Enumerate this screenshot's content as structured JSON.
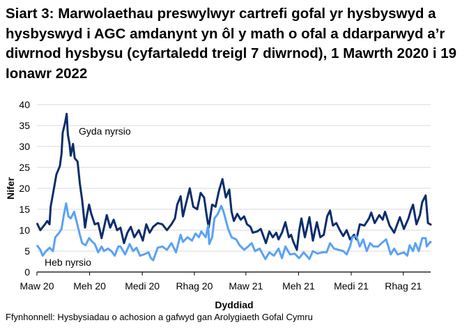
{
  "chart_data": {
    "type": "line",
    "title": "Siart 3: Marwolaethau preswylwyr cartrefi gofal yr hysbyswyd a hysbyswyd i AGC amdanynt yn ôl y math o ofal a ddarparwyd a’r diwrnod hysbysu (cyfartaledd treigl 7 diwrnod), 1 Mawrth 2020 i 19 Ionawr 2022",
    "xlabel": "Dyddiad",
    "ylabel": "Nifer",
    "xlim": [
      "2020-03-01",
      "2022-01-19"
    ],
    "ylim": [
      0,
      40
    ],
    "yticks": [
      0,
      5,
      10,
      15,
      20,
      25,
      30,
      35,
      40
    ],
    "xticks": [
      {
        "date": "2020-03-01",
        "label": "Maw 20"
      },
      {
        "date": "2020-06-01",
        "label": "Meh 20"
      },
      {
        "date": "2020-09-01",
        "label": "Medi 20"
      },
      {
        "date": "2020-12-01",
        "label": "Rhag 20"
      },
      {
        "date": "2021-03-01",
        "label": "Maw 21"
      },
      {
        "date": "2021-06-01",
        "label": "Meh 21"
      },
      {
        "date": "2021-09-01",
        "label": "Medi 21"
      },
      {
        "date": "2021-12-01",
        "label": "Rhag 21"
      }
    ],
    "grid": "horizontal",
    "source": "Ffynhonnell: Hysbysiadau o achosion a gafwyd gan Arolygiaeth Gofal Cymru",
    "series": [
      {
        "name": "Gyda nyrsio",
        "color": "#0b2d6b",
        "points": [
          [
            "2020-03-01",
            11.7
          ],
          [
            "2020-03-07",
            10
          ],
          [
            "2020-03-15",
            11.4
          ],
          [
            "2020-03-19",
            12.2
          ],
          [
            "2020-03-23",
            11.4
          ],
          [
            "2020-03-25",
            15.6
          ],
          [
            "2020-03-30",
            19.4
          ],
          [
            "2020-04-04",
            23.3
          ],
          [
            "2020-04-10",
            25.3
          ],
          [
            "2020-04-13",
            28.3
          ],
          [
            "2020-04-15",
            33.3
          ],
          [
            "2020-04-19",
            35.6
          ],
          [
            "2020-04-22",
            37.8
          ],
          [
            "2020-04-24",
            32.8
          ],
          [
            "2020-04-27",
            30.6
          ],
          [
            "2020-04-29",
            27.8
          ],
          [
            "2020-05-03",
            30.6
          ],
          [
            "2020-05-06",
            27.2
          ],
          [
            "2020-05-11",
            26.4
          ],
          [
            "2020-05-15",
            21.1
          ],
          [
            "2020-05-19",
            17.2
          ],
          [
            "2020-05-24",
            10.6
          ],
          [
            "2020-05-27",
            13.3
          ],
          [
            "2020-05-31",
            16.1
          ],
          [
            "2020-06-04",
            13.9
          ],
          [
            "2020-06-10",
            11.4
          ],
          [
            "2020-06-16",
            11.7
          ],
          [
            "2020-06-22",
            8.1
          ],
          [
            "2020-07-01",
            13.6
          ],
          [
            "2020-07-07",
            10.6
          ],
          [
            "2020-07-13",
            12.5
          ],
          [
            "2020-07-19",
            10
          ],
          [
            "2020-07-25",
            10.6
          ],
          [
            "2020-07-31",
            6.9
          ],
          [
            "2020-08-06",
            9.4
          ],
          [
            "2020-08-12",
            10.8
          ],
          [
            "2020-08-18",
            8.3
          ],
          [
            "2020-08-26",
            10
          ],
          [
            "2020-09-02",
            7.5
          ],
          [
            "2020-09-08",
            11.4
          ],
          [
            "2020-09-14",
            9.4
          ],
          [
            "2020-09-20",
            10.8
          ],
          [
            "2020-09-28",
            11.7
          ],
          [
            "2020-10-06",
            11.4
          ],
          [
            "2020-10-14",
            10
          ],
          [
            "2020-10-22",
            11.4
          ],
          [
            "2020-10-28",
            12.8
          ],
          [
            "2020-11-01",
            16.1
          ],
          [
            "2020-11-07",
            18.1
          ],
          [
            "2020-11-11",
            13.3
          ],
          [
            "2020-11-17",
            16.7
          ],
          [
            "2020-11-23",
            20
          ],
          [
            "2020-11-29",
            15.6
          ],
          [
            "2020-12-06",
            15
          ],
          [
            "2020-12-12",
            18.9
          ],
          [
            "2020-12-18",
            17.8
          ],
          [
            "2020-12-22",
            13.9
          ],
          [
            "2020-12-26",
            10.6
          ],
          [
            "2021-01-01",
            16.1
          ],
          [
            "2021-01-07",
            15.6
          ],
          [
            "2021-01-13",
            19.4
          ],
          [
            "2021-01-19",
            22.2
          ],
          [
            "2021-01-25",
            17.8
          ],
          [
            "2021-01-31",
            19.7
          ],
          [
            "2021-02-04",
            14.4
          ],
          [
            "2021-02-08",
            12.2
          ],
          [
            "2021-02-14",
            13.9
          ],
          [
            "2021-02-20",
            12.5
          ],
          [
            "2021-02-26",
            13.3
          ],
          [
            "2021-03-03",
            11.4
          ],
          [
            "2021-03-09",
            10.8
          ],
          [
            "2021-03-13",
            9.4
          ],
          [
            "2021-03-21",
            9.7
          ],
          [
            "2021-03-27",
            10.3
          ],
          [
            "2021-04-05",
            6.9
          ],
          [
            "2021-04-11",
            9.7
          ],
          [
            "2021-04-17",
            8.3
          ],
          [
            "2021-04-23",
            9.4
          ],
          [
            "2021-04-27",
            7.8
          ],
          [
            "2021-05-03",
            9.4
          ],
          [
            "2021-05-09",
            11.9
          ],
          [
            "2021-05-15",
            8.3
          ],
          [
            "2021-05-19",
            8.9
          ],
          [
            "2021-05-23",
            7.2
          ],
          [
            "2021-05-29",
            5.3
          ],
          [
            "2021-06-02",
            9.7
          ],
          [
            "2021-06-06",
            12.8
          ],
          [
            "2021-06-12",
            8.3
          ],
          [
            "2021-06-20",
            13.1
          ],
          [
            "2021-06-26",
            7.5
          ],
          [
            "2021-07-03",
            11.9
          ],
          [
            "2021-07-09",
            8.3
          ],
          [
            "2021-07-15",
            8.9
          ],
          [
            "2021-07-21",
            13.3
          ],
          [
            "2021-07-26",
            14.7
          ],
          [
            "2021-07-31",
            11.1
          ],
          [
            "2021-08-06",
            11.7
          ],
          [
            "2021-08-12",
            10
          ],
          [
            "2021-08-18",
            8.6
          ],
          [
            "2021-08-24",
            10
          ],
          [
            "2021-08-30",
            7.8
          ],
          [
            "2021-09-06",
            8.9
          ],
          [
            "2021-09-10",
            7.8
          ],
          [
            "2021-09-16",
            11.4
          ],
          [
            "2021-09-24",
            11.1
          ],
          [
            "2021-10-02",
            12.8
          ],
          [
            "2021-10-06",
            14.2
          ],
          [
            "2021-10-12",
            11.7
          ],
          [
            "2021-10-20",
            13.6
          ],
          [
            "2021-10-26",
            12.5
          ],
          [
            "2021-10-30",
            14.4
          ],
          [
            "2021-11-07",
            11.1
          ],
          [
            "2021-11-15",
            9.4
          ],
          [
            "2021-11-25",
            13.1
          ],
          [
            "2021-12-02",
            10.3
          ],
          [
            "2021-12-10",
            12.8
          ],
          [
            "2021-12-14",
            14.7
          ],
          [
            "2021-12-18",
            16.1
          ],
          [
            "2021-12-24",
            11.4
          ],
          [
            "2021-12-30",
            13.6
          ],
          [
            "2022-01-03",
            16.7
          ],
          [
            "2022-01-09",
            18.3
          ],
          [
            "2022-01-13",
            11.7
          ],
          [
            "2022-01-17",
            11.4
          ],
          [
            "2022-01-19",
            11.2
          ]
        ]
      },
      {
        "name": "Heb nyrsio",
        "color": "#5aa2f5",
        "points": [
          [
            "2020-03-01",
            6.4
          ],
          [
            "2020-03-07",
            5.3
          ],
          [
            "2020-03-11",
            3.9
          ],
          [
            "2020-03-17",
            5
          ],
          [
            "2020-03-23",
            5.8
          ],
          [
            "2020-03-29",
            5
          ],
          [
            "2020-04-02",
            8.3
          ],
          [
            "2020-04-09",
            9.4
          ],
          [
            "2020-04-13",
            10.3
          ],
          [
            "2020-04-17",
            13.6
          ],
          [
            "2020-04-21",
            16.4
          ],
          [
            "2020-04-25",
            13.3
          ],
          [
            "2020-04-29",
            12.8
          ],
          [
            "2020-05-05",
            14.4
          ],
          [
            "2020-05-09",
            12.2
          ],
          [
            "2020-05-15",
            8.9
          ],
          [
            "2020-05-19",
            6.9
          ],
          [
            "2020-05-25",
            6.4
          ],
          [
            "2020-05-31",
            8.1
          ],
          [
            "2020-06-06",
            7.2
          ],
          [
            "2020-06-10",
            6.7
          ],
          [
            "2020-06-16",
            4.7
          ],
          [
            "2020-06-22",
            6.1
          ],
          [
            "2020-06-26",
            5
          ],
          [
            "2020-07-03",
            5.6
          ],
          [
            "2020-07-09",
            5
          ],
          [
            "2020-07-15",
            3.9
          ],
          [
            "2020-07-21",
            6.1
          ],
          [
            "2020-07-25",
            6.1
          ],
          [
            "2020-08-02",
            4.2
          ],
          [
            "2020-08-10",
            6.7
          ],
          [
            "2020-08-16",
            5
          ],
          [
            "2020-08-22",
            5.8
          ],
          [
            "2020-08-28",
            3.9
          ],
          [
            "2020-09-04",
            4.2
          ],
          [
            "2020-09-12",
            4.7
          ],
          [
            "2020-09-16",
            3.3
          ],
          [
            "2020-09-20",
            2.8
          ],
          [
            "2020-09-28",
            5.8
          ],
          [
            "2020-10-06",
            6.1
          ],
          [
            "2020-10-14",
            5.3
          ],
          [
            "2020-10-22",
            6.9
          ],
          [
            "2020-10-30",
            4.7
          ],
          [
            "2020-11-07",
            8.9
          ],
          [
            "2020-11-11",
            7.2
          ],
          [
            "2020-11-19",
            8.3
          ],
          [
            "2020-11-27",
            7.5
          ],
          [
            "2020-12-03",
            9.2
          ],
          [
            "2020-12-09",
            8.3
          ],
          [
            "2020-12-13",
            9.7
          ],
          [
            "2020-12-21",
            8.3
          ],
          [
            "2020-12-25",
            11.1
          ],
          [
            "2020-12-27",
            6.7
          ],
          [
            "2021-01-01",
            8.3
          ],
          [
            "2021-01-05",
            12.8
          ],
          [
            "2021-01-11",
            13.9
          ],
          [
            "2021-01-17",
            15.8
          ],
          [
            "2021-01-21",
            14.4
          ],
          [
            "2021-01-29",
            10.3
          ],
          [
            "2021-02-04",
            8.3
          ],
          [
            "2021-02-12",
            7.8
          ],
          [
            "2021-02-18",
            6.4
          ],
          [
            "2021-02-26",
            5.3
          ],
          [
            "2021-03-05",
            6.1
          ],
          [
            "2021-03-11",
            6.9
          ],
          [
            "2021-03-17",
            5
          ],
          [
            "2021-03-25",
            5.6
          ],
          [
            "2021-04-04",
            3.1
          ],
          [
            "2021-04-11",
            4.7
          ],
          [
            "2021-04-19",
            3.9
          ],
          [
            "2021-04-27",
            5.6
          ],
          [
            "2021-05-03",
            3.3
          ],
          [
            "2021-05-09",
            6.1
          ],
          [
            "2021-05-17",
            4.2
          ],
          [
            "2021-05-25",
            4.4
          ],
          [
            "2021-06-02",
            3.3
          ],
          [
            "2021-06-10",
            4.7
          ],
          [
            "2021-06-20",
            3.1
          ],
          [
            "2021-06-26",
            5
          ],
          [
            "2021-07-04",
            4.4
          ],
          [
            "2021-07-12",
            4.7
          ],
          [
            "2021-07-20",
            4.7
          ],
          [
            "2021-07-26",
            6.9
          ],
          [
            "2021-08-02",
            5.6
          ],
          [
            "2021-08-10",
            5.3
          ],
          [
            "2021-08-18",
            5
          ],
          [
            "2021-08-24",
            4.2
          ],
          [
            "2021-08-30",
            6.1
          ],
          [
            "2021-09-03",
            8.3
          ],
          [
            "2021-09-10",
            8.6
          ],
          [
            "2021-09-16",
            6.1
          ],
          [
            "2021-09-22",
            7.8
          ],
          [
            "2021-09-28",
            5
          ],
          [
            "2021-10-04",
            6.9
          ],
          [
            "2021-10-10",
            6.1
          ],
          [
            "2021-10-18",
            6.1
          ],
          [
            "2021-10-24",
            6.9
          ],
          [
            "2021-11-01",
            7.8
          ],
          [
            "2021-11-09",
            4.2
          ],
          [
            "2021-11-15",
            5.6
          ],
          [
            "2021-11-21",
            4.2
          ],
          [
            "2021-12-02",
            4.7
          ],
          [
            "2021-12-08",
            3.9
          ],
          [
            "2021-12-12",
            6.4
          ],
          [
            "2021-12-18",
            5
          ],
          [
            "2021-12-22",
            6.9
          ],
          [
            "2021-12-28",
            5
          ],
          [
            "2022-01-03",
            8.1
          ],
          [
            "2022-01-09",
            8.1
          ],
          [
            "2022-01-11",
            6.1
          ],
          [
            "2022-01-17",
            7.2
          ],
          [
            "2022-01-19",
            7
          ]
        ]
      }
    ]
  }
}
